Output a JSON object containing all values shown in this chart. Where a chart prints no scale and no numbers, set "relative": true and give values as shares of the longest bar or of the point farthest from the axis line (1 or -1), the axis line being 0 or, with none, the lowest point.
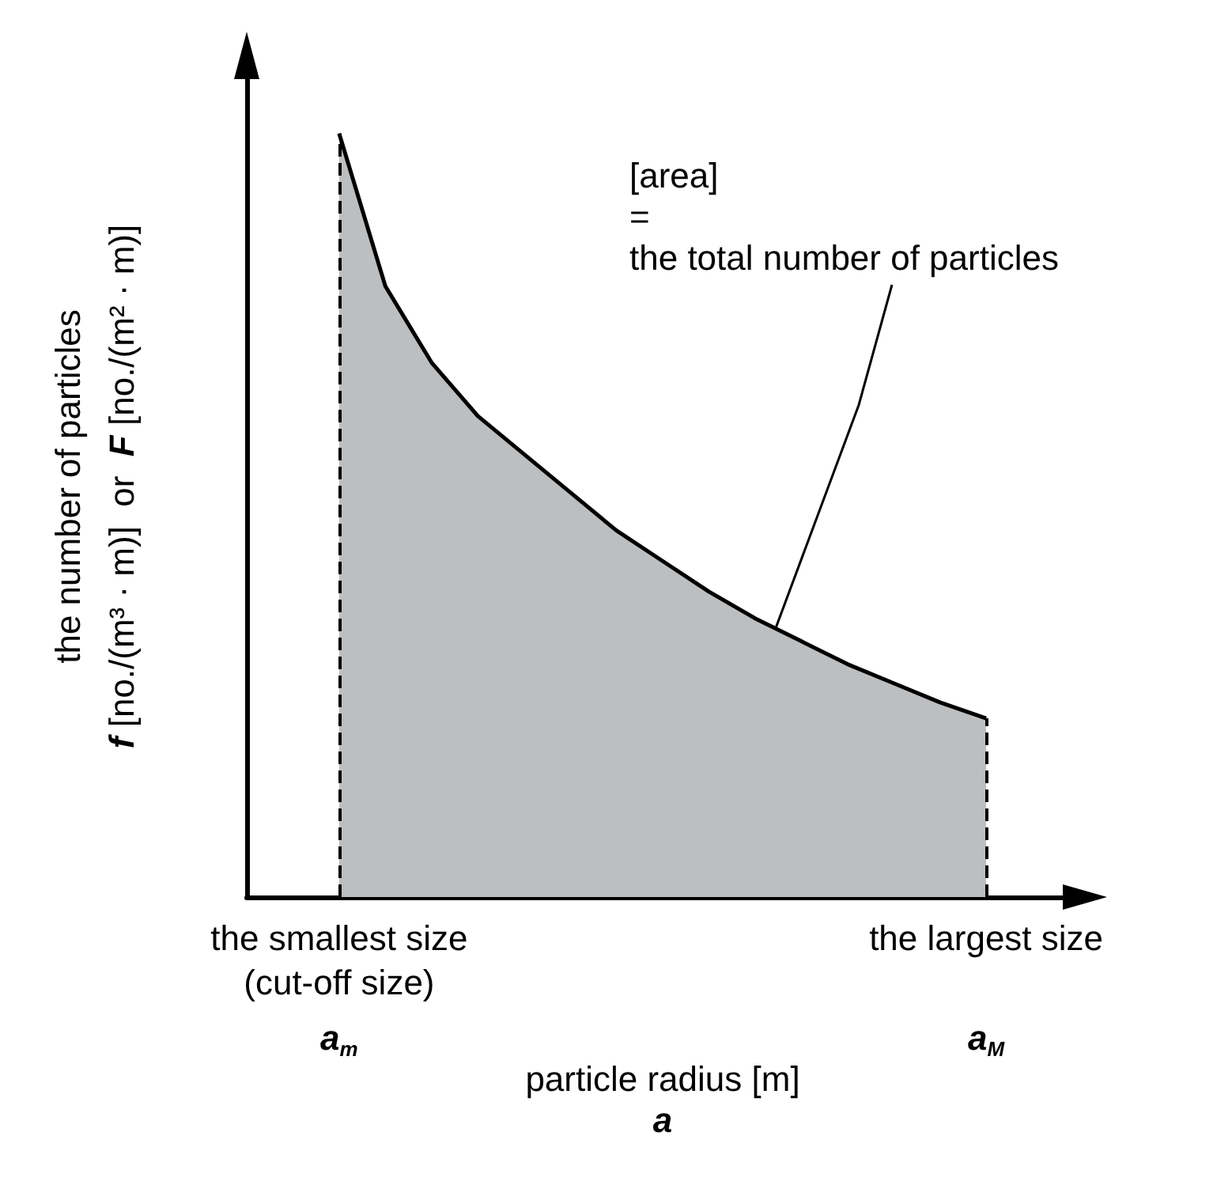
{
  "chart_data": {
    "type": "area",
    "relative": true,
    "xlabel": "particle radius [m]\na",
    "ylabel": "the number of particles\nf [no./(m³ · m)]  or  F [no./(m² · m)]",
    "categories": [
      null,
      null,
      "the smallest size\n(cut-off size)",
      null,
      null,
      null,
      null,
      null,
      null,
      null,
      null,
      null,
      null,
      null,
      null,
      null,
      "the largest size",
      null,
      null
    ],
    "series": [
      {
        "color": "#bcbec0",
        "values": [
          null,
          null,
          1.0,
          0.8,
          0.7,
          0.63,
          0.58,
          0.53,
          0.48,
          0.44,
          0.4,
          0.365,
          0.335,
          0.305,
          0.28,
          0.255,
          0.234,
          null,
          null
        ]
      }
    ],
    "annotations": [
      "[area]\n=\nthe total number of particles",
      "a$_{m}$",
      "a$_{M}$"
    ],
    "ref_lines": [
      {
        "axis": "x",
        "value": "the smallest size\n(cut-off size)",
        "color": "#000000",
        "line_style": "dashed"
      },
      {
        "axis": "x",
        "value": "the largest size",
        "color": "#000000",
        "line_style": "dashed"
      }
    ]
  }
}
